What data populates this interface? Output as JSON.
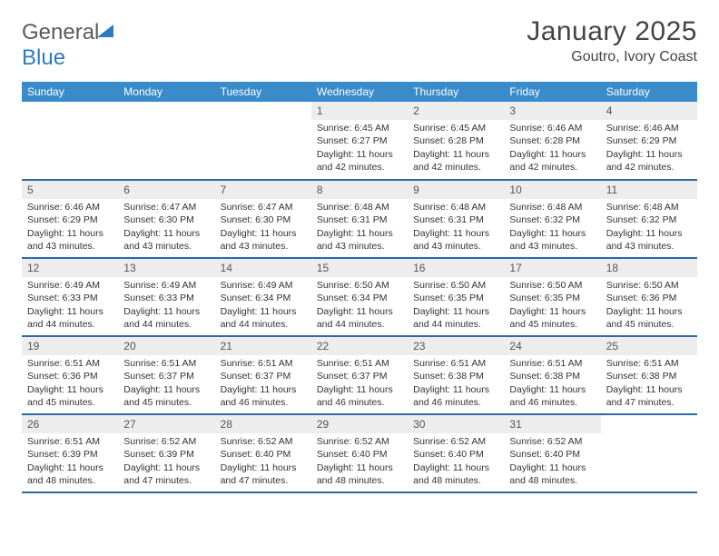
{
  "logo": {
    "text_gray": "General",
    "text_blue": "Blue"
  },
  "title": {
    "month": "January 2025",
    "location": "Goutro, Ivory Coast"
  },
  "colors": {
    "header_bg": "#3a8bc9",
    "header_fg": "#ffffff",
    "row_border": "#2b6aa3",
    "daynum_bg": "#ededed",
    "body_text": "#333333",
    "logo_blue": "#2b7bbf",
    "logo_gray": "#5a5a5a"
  },
  "weekdays": [
    "Sunday",
    "Monday",
    "Tuesday",
    "Wednesday",
    "Thursday",
    "Friday",
    "Saturday"
  ],
  "labels": {
    "sunrise": "Sunrise:",
    "sunset": "Sunset:",
    "daylight": "Daylight:"
  },
  "weeks": [
    [
      null,
      null,
      null,
      {
        "n": "1",
        "sunrise": "6:45 AM",
        "sunset": "6:27 PM",
        "daylight": "11 hours and 42 minutes."
      },
      {
        "n": "2",
        "sunrise": "6:45 AM",
        "sunset": "6:28 PM",
        "daylight": "11 hours and 42 minutes."
      },
      {
        "n": "3",
        "sunrise": "6:46 AM",
        "sunset": "6:28 PM",
        "daylight": "11 hours and 42 minutes."
      },
      {
        "n": "4",
        "sunrise": "6:46 AM",
        "sunset": "6:29 PM",
        "daylight": "11 hours and 42 minutes."
      }
    ],
    [
      {
        "n": "5",
        "sunrise": "6:46 AM",
        "sunset": "6:29 PM",
        "daylight": "11 hours and 43 minutes."
      },
      {
        "n": "6",
        "sunrise": "6:47 AM",
        "sunset": "6:30 PM",
        "daylight": "11 hours and 43 minutes."
      },
      {
        "n": "7",
        "sunrise": "6:47 AM",
        "sunset": "6:30 PM",
        "daylight": "11 hours and 43 minutes."
      },
      {
        "n": "8",
        "sunrise": "6:48 AM",
        "sunset": "6:31 PM",
        "daylight": "11 hours and 43 minutes."
      },
      {
        "n": "9",
        "sunrise": "6:48 AM",
        "sunset": "6:31 PM",
        "daylight": "11 hours and 43 minutes."
      },
      {
        "n": "10",
        "sunrise": "6:48 AM",
        "sunset": "6:32 PM",
        "daylight": "11 hours and 43 minutes."
      },
      {
        "n": "11",
        "sunrise": "6:48 AM",
        "sunset": "6:32 PM",
        "daylight": "11 hours and 43 minutes."
      }
    ],
    [
      {
        "n": "12",
        "sunrise": "6:49 AM",
        "sunset": "6:33 PM",
        "daylight": "11 hours and 44 minutes."
      },
      {
        "n": "13",
        "sunrise": "6:49 AM",
        "sunset": "6:33 PM",
        "daylight": "11 hours and 44 minutes."
      },
      {
        "n": "14",
        "sunrise": "6:49 AM",
        "sunset": "6:34 PM",
        "daylight": "11 hours and 44 minutes."
      },
      {
        "n": "15",
        "sunrise": "6:50 AM",
        "sunset": "6:34 PM",
        "daylight": "11 hours and 44 minutes."
      },
      {
        "n": "16",
        "sunrise": "6:50 AM",
        "sunset": "6:35 PM",
        "daylight": "11 hours and 44 minutes."
      },
      {
        "n": "17",
        "sunrise": "6:50 AM",
        "sunset": "6:35 PM",
        "daylight": "11 hours and 45 minutes."
      },
      {
        "n": "18",
        "sunrise": "6:50 AM",
        "sunset": "6:36 PM",
        "daylight": "11 hours and 45 minutes."
      }
    ],
    [
      {
        "n": "19",
        "sunrise": "6:51 AM",
        "sunset": "6:36 PM",
        "daylight": "11 hours and 45 minutes."
      },
      {
        "n": "20",
        "sunrise": "6:51 AM",
        "sunset": "6:37 PM",
        "daylight": "11 hours and 45 minutes."
      },
      {
        "n": "21",
        "sunrise": "6:51 AM",
        "sunset": "6:37 PM",
        "daylight": "11 hours and 46 minutes."
      },
      {
        "n": "22",
        "sunrise": "6:51 AM",
        "sunset": "6:37 PM",
        "daylight": "11 hours and 46 minutes."
      },
      {
        "n": "23",
        "sunrise": "6:51 AM",
        "sunset": "6:38 PM",
        "daylight": "11 hours and 46 minutes."
      },
      {
        "n": "24",
        "sunrise": "6:51 AM",
        "sunset": "6:38 PM",
        "daylight": "11 hours and 46 minutes."
      },
      {
        "n": "25",
        "sunrise": "6:51 AM",
        "sunset": "6:38 PM",
        "daylight": "11 hours and 47 minutes."
      }
    ],
    [
      {
        "n": "26",
        "sunrise": "6:51 AM",
        "sunset": "6:39 PM",
        "daylight": "11 hours and 48 minutes."
      },
      {
        "n": "27",
        "sunrise": "6:52 AM",
        "sunset": "6:39 PM",
        "daylight": "11 hours and 47 minutes."
      },
      {
        "n": "28",
        "sunrise": "6:52 AM",
        "sunset": "6:40 PM",
        "daylight": "11 hours and 47 minutes."
      },
      {
        "n": "29",
        "sunrise": "6:52 AM",
        "sunset": "6:40 PM",
        "daylight": "11 hours and 48 minutes."
      },
      {
        "n": "30",
        "sunrise": "6:52 AM",
        "sunset": "6:40 PM",
        "daylight": "11 hours and 48 minutes."
      },
      {
        "n": "31",
        "sunrise": "6:52 AM",
        "sunset": "6:40 PM",
        "daylight": "11 hours and 48 minutes."
      },
      null
    ]
  ]
}
